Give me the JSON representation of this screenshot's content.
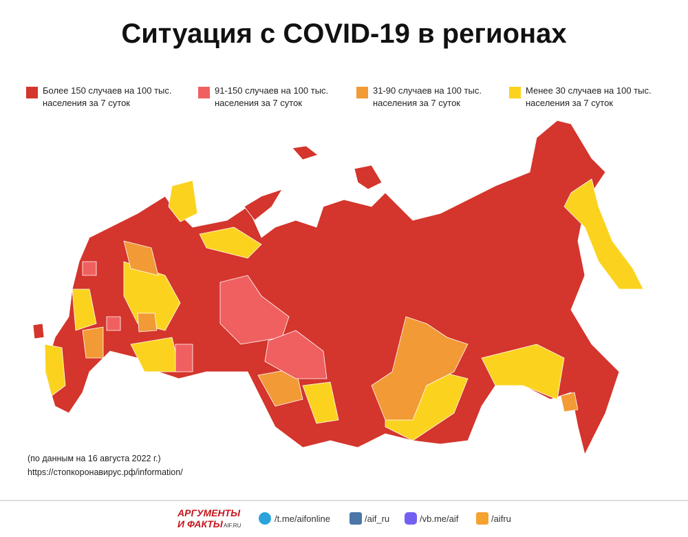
{
  "title": "Ситуация с COVID-19 в регионах",
  "legend": [
    {
      "lines": [
        "Более 150 случаев на 100 тыс.",
        "населения за 7 суток"
      ],
      "color": "#d4352c"
    },
    {
      "lines": [
        "91-150 случаев на 100 тыс.",
        "населения за 7 суток"
      ],
      "color": "#f06060"
    },
    {
      "lines": [
        "31-90 случаев на 100 тыс.",
        "населения за 7 суток"
      ],
      "color": "#f29a35"
    },
    {
      "lines": [
        "Менее 30 случаев на 100 тыс.",
        "населения за 7 суток"
      ],
      "color": "#fbd31f"
    }
  ],
  "source": [
    "(по данным на 16 августа 2022 г.)",
    "https://стопкоронавирус.рф/information/"
  ],
  "footer": {
    "brand": [
      "АРГУМЕНТЫ",
      "И ФАКТЫ",
      "AIF.RU"
    ],
    "links": [
      "/t.me/aifonline",
      "/aif_ru",
      "/vb.me/aif",
      "/aifru"
    ]
  }
}
